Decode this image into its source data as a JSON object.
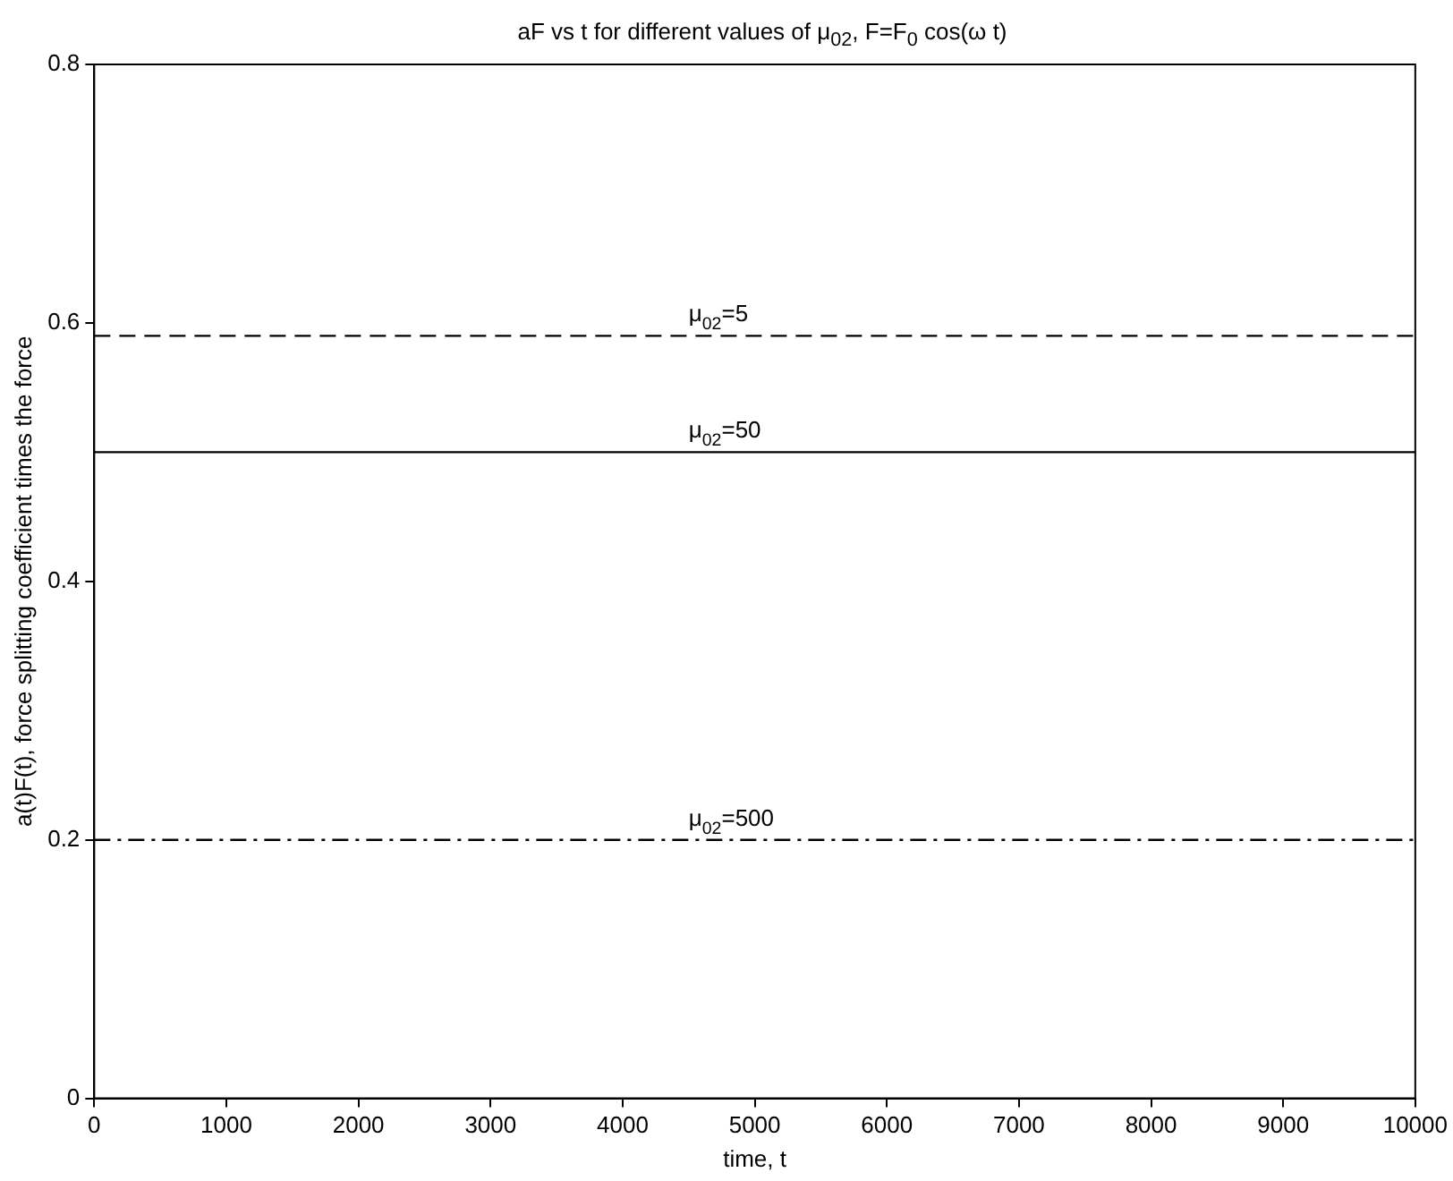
{
  "chart_data": {
    "type": "line",
    "title": "aF vs t for different values of μ$_{02}$,  F=F$_{0}$ cos(ω t)",
    "xlabel": "time, t",
    "ylabel": "a(t)F(t), force splitting coefficient times the force",
    "x": [
      0,
      10000
    ],
    "series": [
      {
        "name": "μ$_{02}$=5",
        "color": "#000000",
        "values": [
          0.59,
          0.59
        ],
        "line_style": "dashed"
      },
      {
        "name": "μ$_{02}$=50",
        "color": "#000000",
        "values": [
          0.5,
          0.5
        ],
        "line_style": "solid"
      },
      {
        "name": "μ$_{02}$=500",
        "color": "#000000",
        "values": [
          0.2,
          0.2
        ],
        "line_style": "dashdot"
      }
    ],
    "xlim": [
      0,
      10000
    ],
    "xticks": [
      0,
      1000,
      2000,
      3000,
      4000,
      5000,
      6000,
      7000,
      8000,
      9000,
      10000
    ],
    "ylim": [
      0,
      0.8
    ],
    "yticks": [
      0,
      0.2,
      0.4,
      0.6,
      0.8
    ],
    "grid": false,
    "legend": false,
    "marker": "none"
  }
}
